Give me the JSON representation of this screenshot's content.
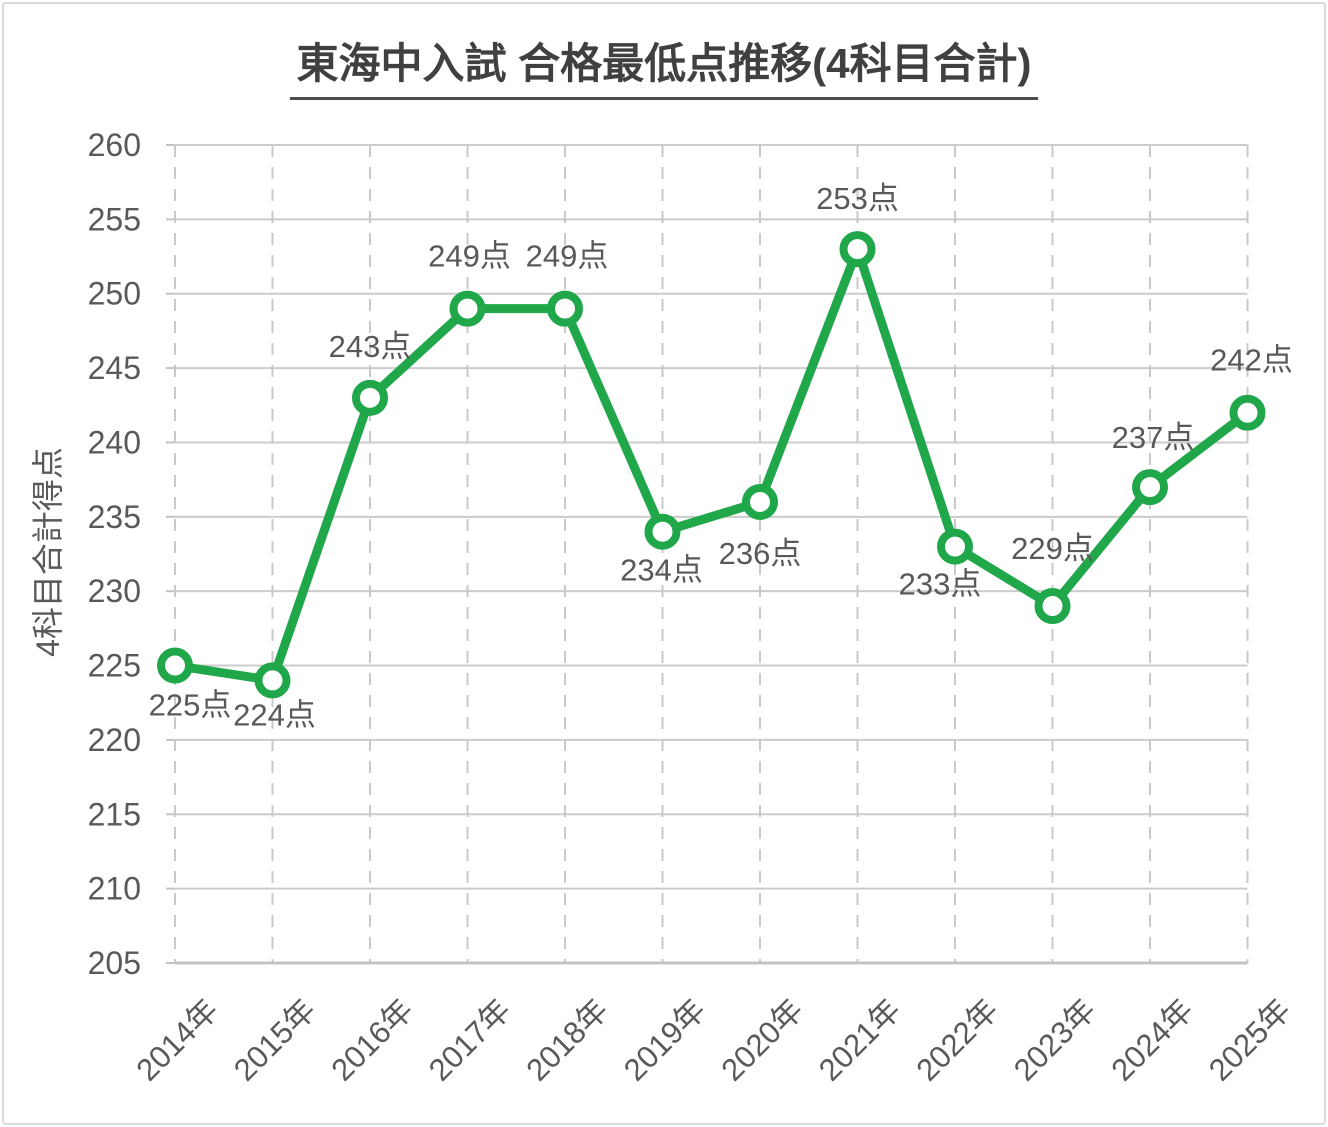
{
  "frame": {
    "border_color": "#d9d9d9",
    "background": "#ffffff"
  },
  "chart": {
    "title": "東海中入試 合格最低点推移(4科目合計)",
    "ylabel": "4科目合計得点"
  },
  "chart_data": {
    "type": "line",
    "title": "東海中入試 合格最低点推移(4科目合計)",
    "xlabel": "",
    "ylabel": "4科目合計得点",
    "categories": [
      "2014年",
      "2015年",
      "2016年",
      "2017年",
      "2018年",
      "2019年",
      "2020年",
      "2021年",
      "2022年",
      "2023年",
      "2024年",
      "2025年"
    ],
    "values": [
      225,
      224,
      243,
      249,
      249,
      234,
      236,
      253,
      233,
      229,
      237,
      242
    ],
    "data_labels": [
      "225点",
      "224点",
      "243点",
      "249点",
      "249点",
      "234点",
      "236点",
      "253点",
      "233点",
      "229点",
      "237点",
      "242点"
    ],
    "y_ticks": [
      205,
      210,
      215,
      220,
      225,
      230,
      235,
      240,
      245,
      250,
      255,
      260
    ],
    "ylim": [
      205,
      260
    ],
    "legend": "none",
    "grid": {
      "horizontal": "solid",
      "vertical": "dashed"
    },
    "colors": {
      "line": "#20a74a",
      "marker_fill": "#ffffff",
      "marker_stroke": "#20a74a",
      "gridline": "#cccccc",
      "vertical_gridline": "#c9c9c9",
      "axis_line": "#c3c3c3",
      "tick_label": "#595959",
      "data_label": "#595959",
      "title": "#404040"
    }
  }
}
